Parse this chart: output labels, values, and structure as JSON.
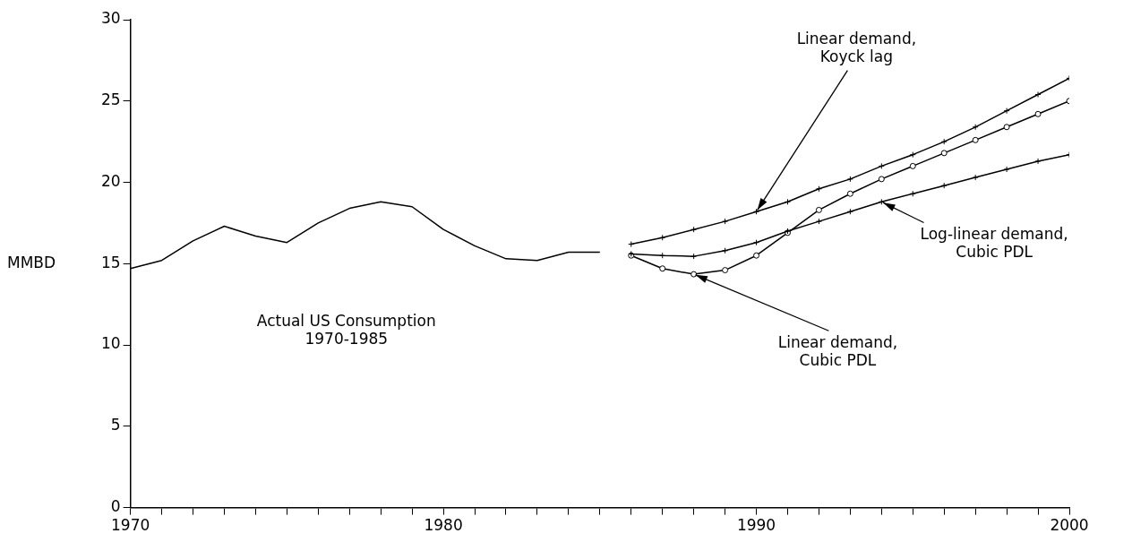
{
  "chart_data": {
    "type": "line",
    "ylabel": "MMBD",
    "xlim": [
      1970,
      2000
    ],
    "ylim": [
      0,
      30
    ],
    "xticks": [
      1970,
      {
        "value": 1971,
        "label": null
      },
      {
        "value": 1972,
        "label": null
      },
      {
        "value": 1973,
        "label": null
      },
      {
        "value": 1974,
        "label": null
      },
      {
        "value": 1975,
        "label": null
      },
      {
        "value": 1976,
        "label": null
      },
      {
        "value": 1977,
        "label": null
      },
      {
        "value": 1978,
        "label": null
      },
      {
        "value": 1979,
        "label": null
      },
      1980,
      {
        "value": 1981,
        "label": null
      },
      {
        "value": 1982,
        "label": null
      },
      {
        "value": 1983,
        "label": null
      },
      {
        "value": 1984,
        "label": null
      },
      {
        "value": 1985,
        "label": null
      },
      {
        "value": 1986,
        "label": null
      },
      {
        "value": 1987,
        "label": null
      },
      {
        "value": 1988,
        "label": null
      },
      {
        "value": 1989,
        "label": null
      },
      1990,
      {
        "value": 1991,
        "label": null
      },
      {
        "value": 1992,
        "label": null
      },
      {
        "value": 1993,
        "label": null
      },
      {
        "value": 1994,
        "label": null
      },
      {
        "value": 1995,
        "label": null
      },
      {
        "value": 1996,
        "label": null
      },
      {
        "value": 1997,
        "label": null
      },
      {
        "value": 1998,
        "label": null
      },
      {
        "value": 1999,
        "label": null
      },
      2000
    ],
    "yticks": [
      0,
      5,
      10,
      15,
      20,
      25,
      30
    ],
    "grid": false,
    "legend": false,
    "line_style": "solid",
    "series": [
      {
        "color": "#000000",
        "marker": "none",
        "x": [
          1970,
          1971,
          1972,
          1973,
          1974,
          1975,
          1976,
          1977,
          1978,
          1979,
          1980,
          1981,
          1982,
          1983,
          1984,
          1985
        ],
        "values": [
          14.7,
          15.2,
          16.4,
          17.3,
          16.7,
          16.3,
          17.5,
          18.4,
          18.8,
          18.5,
          17.1,
          16.1,
          15.3,
          15.2,
          15.7,
          15.7
        ]
      },
      {
        "color": "#000000",
        "marker": "cross",
        "x": [
          1986,
          1987,
          1988,
          1989,
          1990,
          1991,
          1992,
          1993,
          1994,
          1995,
          1996,
          1997,
          1998,
          1999,
          2000
        ],
        "values": [
          16.2,
          16.6,
          17.1,
          17.6,
          18.2,
          18.8,
          19.6,
          20.2,
          21.0,
          21.7,
          22.5,
          23.4,
          24.4,
          25.4,
          26.4
        ]
      },
      {
        "color": "#000000",
        "marker": "cross",
        "x": [
          1986,
          1987,
          1988,
          1989,
          1990,
          1991,
          1992,
          1993,
          1994,
          1995,
          1996,
          1997,
          1998,
          1999,
          2000
        ],
        "values": [
          15.6,
          15.5,
          15.45,
          15.8,
          16.3,
          17.0,
          17.6,
          18.2,
          18.8,
          19.3,
          19.8,
          20.3,
          20.8,
          21.3,
          21.7
        ]
      },
      {
        "color": "#000000",
        "marker": "circle",
        "x": [
          1986,
          1987,
          1988,
          1989,
          1990,
          1991,
          1992,
          1993,
          1994,
          1995,
          1996,
          1997,
          1998,
          1999,
          2000
        ],
        "values": [
          15.5,
          14.7,
          14.35,
          14.6,
          15.5,
          16.9,
          18.3,
          19.3,
          20.2,
          21.0,
          21.8,
          22.6,
          23.4,
          24.2,
          25.0
        ]
      }
    ],
    "annotations": [
      "Actual US Consumption\n1970-1985",
      {
        "text": "Linear demand,\nKoyck lag",
        "x": 1990,
        "y": 18.2
      },
      {
        "text": "Log-linear demand,\nCubic PDL",
        "x": 1994,
        "y": 18.8
      },
      {
        "text": "Linear demand,\nCubic PDL",
        "x": 1988,
        "y": 14.35
      }
    ]
  }
}
